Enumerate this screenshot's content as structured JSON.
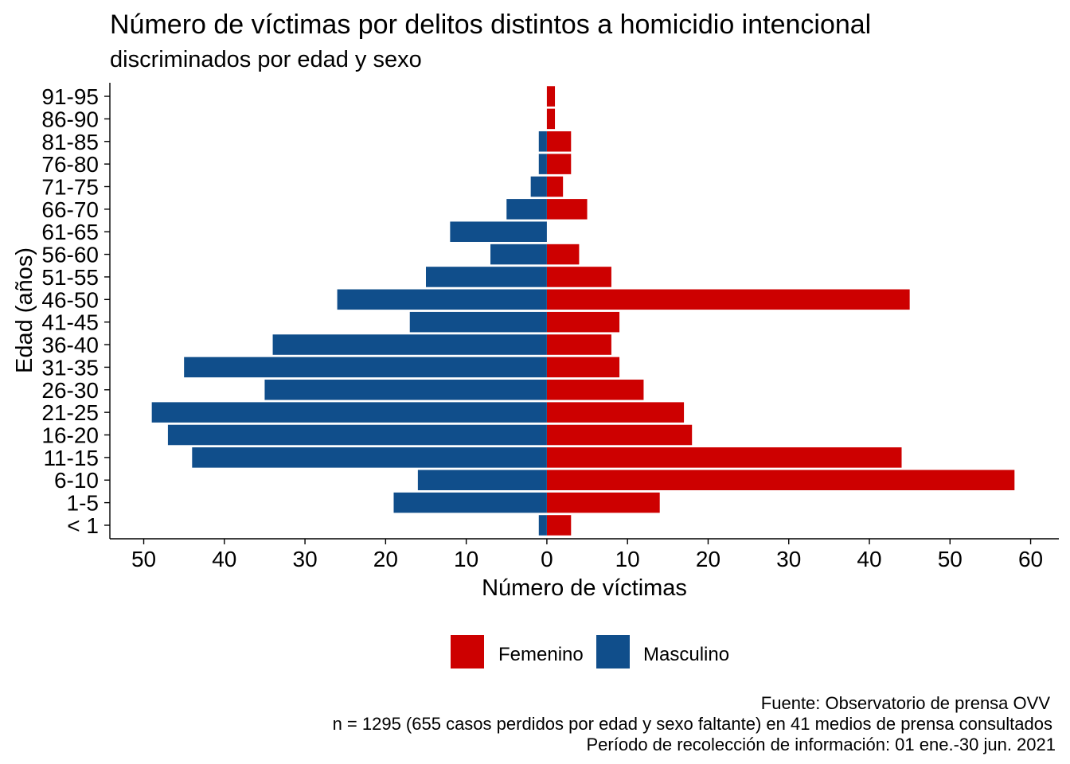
{
  "chart_data": {
    "type": "bar",
    "orientation": "horizontal",
    "title": "Número de víctimas por delitos distintos a homicidio intencional",
    "subtitle": "discriminados por edad y sexo",
    "xlabel": "Número de víctimas",
    "ylabel": "Edad (años)",
    "categories": [
      "< 1",
      "1-5",
      "6-10",
      "11-15",
      "16-20",
      "21-25",
      "26-30",
      "31-35",
      "36-40",
      "41-45",
      "46-50",
      "51-55",
      "56-60",
      "61-65",
      "66-70",
      "71-75",
      "76-80",
      "81-85",
      "86-90",
      "91-95"
    ],
    "series": [
      {
        "name": "Femenino",
        "color": "#CD0000",
        "side": "right",
        "values": [
          3,
          14,
          58,
          44,
          18,
          17,
          12,
          9,
          8,
          9,
          45,
          8,
          4,
          0,
          5,
          2,
          3,
          3,
          1,
          1
        ]
      },
      {
        "name": "Masculino",
        "color": "#104E8B",
        "side": "left",
        "values": [
          1,
          19,
          16,
          44,
          47,
          49,
          35,
          45,
          34,
          17,
          26,
          15,
          7,
          12,
          5,
          2,
          1,
          1,
          0,
          0
        ]
      }
    ],
    "xlim": [
      -54.2,
      63.5
    ],
    "xtick_labels": [
      "50",
      "40",
      "30",
      "20",
      "10",
      "0",
      "10",
      "20",
      "30",
      "40",
      "50",
      "60"
    ],
    "grid": false,
    "legend_position": "bottom",
    "caption": [
      "Fuente: Observatorio de prensa OVV",
      "n = 1295 (655 casos perdidos por edad y sexo faltante) en 41 medios de prensa consultados",
      "Período de recolección de información: 01 ene.-30 jun. 2021"
    ]
  }
}
